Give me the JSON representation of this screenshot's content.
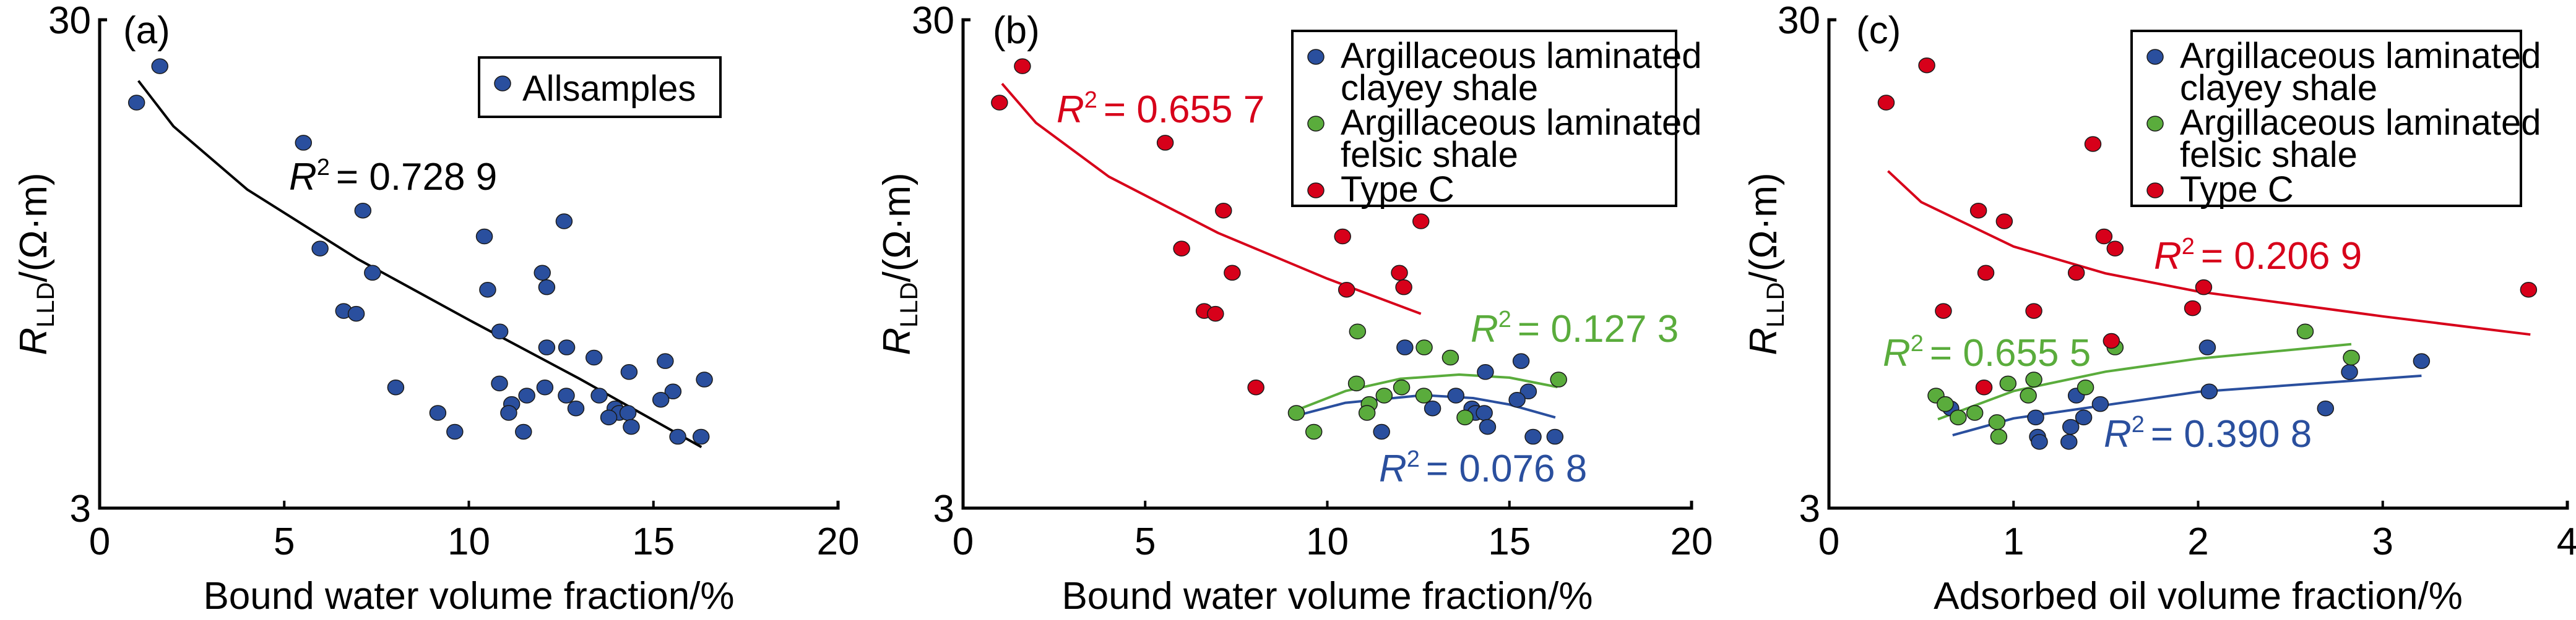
{
  "colors": {
    "blue": "#2a4f9e",
    "green": "#5aac3c",
    "red": "#d7001a",
    "black": "#000000"
  },
  "chart_data": [
    {
      "type": "scatter",
      "panel_label": "(a)",
      "xlabel": "Bound water volume fraction/%",
      "ylabel_main": "R",
      "ylabel_sub": "LLD",
      "ylabel_unit": "/(Ω·m)",
      "xlim": [
        0,
        20
      ],
      "ylim": [
        3,
        30
      ],
      "yscale": "log",
      "xticks": [
        "0",
        "5",
        "10",
        "15",
        "20"
      ],
      "xtick_values": [
        0,
        5,
        10,
        15,
        20
      ],
      "yticks": [
        "3",
        "30"
      ],
      "ytick_values": [
        3,
        30
      ],
      "grid": false,
      "legend_position": "top-right",
      "series": [
        {
          "name": "Allsamples",
          "color": "blue",
          "points": [
            [
              1.0,
              20.3
            ],
            [
              1.63,
              24.1
            ],
            [
              5.52,
              16.8
            ],
            [
              7.13,
              12.2
            ],
            [
              5.97,
              10.2
            ],
            [
              7.39,
              9.1
            ],
            [
              6.61,
              7.6
            ],
            [
              6.95,
              7.5
            ],
            [
              10.42,
              10.8
            ],
            [
              10.51,
              8.4
            ],
            [
              12.58,
              11.6
            ],
            [
              11.99,
              9.1
            ],
            [
              12.11,
              8.5
            ],
            [
              10.84,
              6.9
            ],
            [
              12.11,
              6.4
            ],
            [
              12.65,
              6.4
            ],
            [
              13.39,
              6.1
            ],
            [
              15.32,
              6.0
            ],
            [
              14.34,
              5.7
            ],
            [
              16.38,
              5.5
            ],
            [
              10.83,
              5.4
            ],
            [
              12.06,
              5.3
            ],
            [
              8.02,
              5.3
            ],
            [
              11.57,
              5.1
            ],
            [
              12.64,
              5.1
            ],
            [
              13.53,
              5.1
            ],
            [
              15.53,
              5.2
            ],
            [
              15.2,
              5.0
            ],
            [
              11.16,
              4.9
            ],
            [
              11.08,
              4.7
            ],
            [
              12.9,
              4.8
            ],
            [
              13.96,
              4.8
            ],
            [
              14.07,
              4.7
            ],
            [
              14.31,
              4.7
            ],
            [
              13.79,
              4.6
            ],
            [
              9.16,
              4.7
            ],
            [
              14.4,
              4.4
            ],
            [
              9.62,
              4.3
            ],
            [
              11.48,
              4.3
            ],
            [
              15.66,
              4.2
            ],
            [
              16.29,
              4.2
            ]
          ]
        }
      ],
      "trendlines": [
        {
          "color": "black",
          "r2_prefix": "R",
          "r2_sup": "2",
          "r2_value": "= 0.728 9",
          "points": [
            [
              1.05,
              22.5
            ],
            [
              2,
              18.15
            ],
            [
              4,
              13.47
            ],
            [
              7,
              9.7
            ],
            [
              10,
              7.29
            ],
            [
              13,
              5.52
            ],
            [
              16.3,
              4.0
            ]
          ]
        }
      ]
    },
    {
      "type": "scatter",
      "panel_label": "(b)",
      "xlabel": "Bound water volume fraction/%",
      "ylabel_main": "R",
      "ylabel_sub": "LLD",
      "ylabel_unit": "/(Ω·m)",
      "xlim": [
        0,
        20
      ],
      "ylim": [
        3,
        30
      ],
      "yscale": "log",
      "xticks": [
        "0",
        "5",
        "10",
        "15",
        "20"
      ],
      "xtick_values": [
        0,
        5,
        10,
        15,
        20
      ],
      "yticks": [
        "3",
        "30"
      ],
      "ytick_values": [
        3,
        30
      ],
      "grid": false,
      "legend_position": "top-right",
      "series": [
        {
          "name": "Argillaceous laminated clayey shale",
          "legend_lines": [
            "Argillaceous laminated",
            "clayey shale"
          ],
          "color": "blue",
          "points": [
            [
              12.13,
              6.4
            ],
            [
              15.32,
              6.0
            ],
            [
              14.34,
              5.7
            ],
            [
              15.52,
              5.2
            ],
            [
              13.53,
              5.1
            ],
            [
              15.21,
              5.0
            ],
            [
              12.89,
              4.8
            ],
            [
              13.97,
              4.8
            ],
            [
              14.07,
              4.7
            ],
            [
              14.31,
              4.7
            ],
            [
              14.4,
              4.4
            ],
            [
              11.49,
              4.3
            ],
            [
              15.65,
              4.2
            ],
            [
              16.25,
              4.2
            ]
          ]
        },
        {
          "name": "Argillaceous laminated felsic shale",
          "legend_lines": [
            "Argillaceous laminated",
            "felsic shale"
          ],
          "color": "green",
          "points": [
            [
              10.83,
              6.9
            ],
            [
              12.66,
              6.4
            ],
            [
              13.38,
              6.1
            ],
            [
              16.35,
              5.5
            ],
            [
              10.8,
              5.4
            ],
            [
              12.04,
              5.3
            ],
            [
              11.56,
              5.1
            ],
            [
              12.65,
              5.1
            ],
            [
              11.15,
              4.9
            ],
            [
              11.09,
              4.7
            ],
            [
              9.15,
              4.7
            ],
            [
              13.78,
              4.6
            ],
            [
              9.63,
              4.3
            ]
          ]
        },
        {
          "name": "Type C",
          "legend_lines": [
            "Type C"
          ],
          "color": "red",
          "points": [
            [
              1.0,
              20.3
            ],
            [
              1.63,
              24.1
            ],
            [
              5.55,
              16.8
            ],
            [
              7.15,
              12.2
            ],
            [
              6.0,
              10.2
            ],
            [
              7.39,
              9.1
            ],
            [
              6.62,
              7.6
            ],
            [
              6.93,
              7.5
            ],
            [
              10.42,
              10.8
            ],
            [
              10.53,
              8.4
            ],
            [
              12.57,
              11.6
            ],
            [
              11.98,
              9.1
            ],
            [
              12.1,
              8.5
            ],
            [
              8.04,
              5.3
            ]
          ]
        }
      ],
      "trendlines": [
        {
          "color": "red",
          "r2_prefix": "R",
          "r2_sup": "2",
          "r2_value": "= 0.655 7",
          "points": [
            [
              1.07,
              22.2
            ],
            [
              2,
              18.46
            ],
            [
              4,
              14.32
            ],
            [
              7,
              10.98
            ],
            [
              10,
              8.85
            ],
            [
              12.57,
              7.5
            ]
          ]
        },
        {
          "color": "green",
          "r2_prefix": "R",
          "r2_sup": "2",
          "r2_value": "= 0.127 3",
          "points": [
            [
              9.15,
              4.76
            ],
            [
              10.5,
              5.21
            ],
            [
              12,
              5.52
            ],
            [
              13.62,
              5.63
            ],
            [
              15,
              5.55
            ],
            [
              16.32,
              5.31
            ]
          ]
        },
        {
          "color": "blue",
          "r2_prefix": "R",
          "r2_sup": "2",
          "r2_value": "= 0.076 8",
          "points": [
            [
              9.15,
              4.64
            ],
            [
              10.5,
              4.93
            ],
            [
              12.63,
              5.11
            ],
            [
              14,
              5.04
            ],
            [
              15,
              4.89
            ],
            [
              16.26,
              4.6
            ]
          ]
        }
      ]
    },
    {
      "type": "scatter",
      "panel_label": "(c)",
      "xlabel": "Adsorbed oil volume fraction/%",
      "ylabel_main": "R",
      "ylabel_sub": "LLD",
      "ylabel_unit": "/(Ω·m)",
      "xlim": [
        0,
        4
      ],
      "ylim": [
        3,
        30
      ],
      "yscale": "log",
      "xticks": [
        "0",
        "1",
        "2",
        "3",
        "4"
      ],
      "xtick_values": [
        0,
        1,
        2,
        3,
        4
      ],
      "yticks": [
        "3",
        "30"
      ],
      "ytick_values": [
        3,
        30
      ],
      "grid": false,
      "legend_position": "top-right",
      "series": [
        {
          "name": "Argillaceous laminated clayey shale",
          "legend_lines": [
            "Argillaceous laminated",
            "clayey shale"
          ],
          "color": "blue",
          "points": [
            [
              2.05,
              6.4
            ],
            [
              3.21,
              6.0
            ],
            [
              2.82,
              5.7
            ],
            [
              2.06,
              5.2
            ],
            [
              1.34,
              5.1
            ],
            [
              1.47,
              4.9
            ],
            [
              0.66,
              4.8
            ],
            [
              1.12,
              4.6
            ],
            [
              1.38,
              4.6
            ],
            [
              2.69,
              4.8
            ],
            [
              1.31,
              4.4
            ],
            [
              1.13,
              4.2
            ],
            [
              1.14,
              4.1
            ],
            [
              1.3,
              4.1
            ]
          ]
        },
        {
          "name": "Argillaceous laminated felsic shale",
          "legend_lines": [
            "Argillaceous laminated",
            "felsic shale"
          ],
          "color": "green",
          "points": [
            [
              2.58,
              6.9
            ],
            [
              1.55,
              6.4
            ],
            [
              2.83,
              6.1
            ],
            [
              1.11,
              5.5
            ],
            [
              0.97,
              5.4
            ],
            [
              1.39,
              5.3
            ],
            [
              1.08,
              5.1
            ],
            [
              0.58,
              5.1
            ],
            [
              0.63,
              4.9
            ],
            [
              0.7,
              4.6
            ],
            [
              0.79,
              4.7
            ],
            [
              0.91,
              4.5
            ],
            [
              0.92,
              4.2
            ]
          ]
        },
        {
          "name": "Type C",
          "legend_lines": [
            "Type C"
          ],
          "color": "red",
          "points": [
            [
              0.31,
              20.3
            ],
            [
              0.53,
              24.2
            ],
            [
              1.43,
              16.7
            ],
            [
              0.81,
              12.2
            ],
            [
              0.95,
              11.6
            ],
            [
              1.49,
              10.8
            ],
            [
              1.55,
              10.2
            ],
            [
              0.85,
              9.1
            ],
            [
              1.34,
              9.1
            ],
            [
              2.03,
              8.5
            ],
            [
              3.79,
              8.4
            ],
            [
              0.62,
              7.6
            ],
            [
              1.11,
              7.6
            ],
            [
              1.97,
              7.7
            ],
            [
              1.53,
              6.6
            ],
            [
              0.84,
              5.3
            ]
          ]
        }
      ],
      "trendlines": [
        {
          "color": "red",
          "r2_prefix": "R",
          "r2_sup": "2",
          "r2_value": "= 0.206 9",
          "points": [
            [
              0.32,
              14.7
            ],
            [
              0.5,
              12.7
            ],
            [
              1,
              10.3
            ],
            [
              1.5,
              9.07
            ],
            [
              2,
              8.33
            ],
            [
              3,
              7.41
            ],
            [
              3.8,
              6.8
            ]
          ]
        },
        {
          "color": "green",
          "r2_prefix": "R",
          "r2_sup": "2",
          "r2_value": "= 0.655 5",
          "points": [
            [
              0.59,
              4.56
            ],
            [
              1,
              5.21
            ],
            [
              1.5,
              5.71
            ],
            [
              2,
              6.07
            ],
            [
              2.83,
              6.5
            ]
          ]
        },
        {
          "color": "blue",
          "r2_prefix": "R",
          "r2_sup": "2",
          "r2_value": "= 0.390 8",
          "points": [
            [
              0.67,
              4.23
            ],
            [
              1,
              4.58
            ],
            [
              2,
              5.19
            ],
            [
              3.21,
              5.6
            ]
          ]
        }
      ]
    }
  ]
}
